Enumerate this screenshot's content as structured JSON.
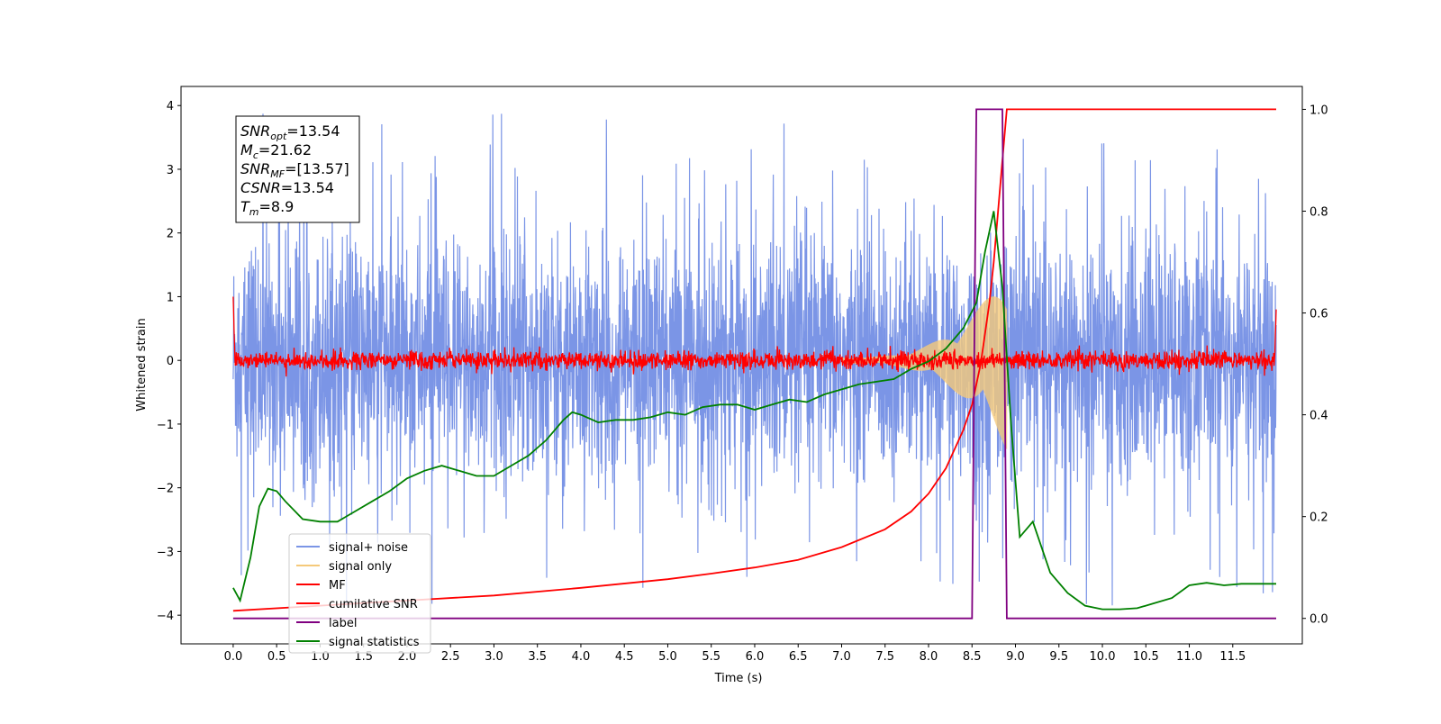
{
  "chart_data": {
    "type": "line",
    "title": "",
    "xlabel": "Time (s)",
    "ylabel": "Whitened strain",
    "ylabel_right": "",
    "xlim": [
      -0.6,
      12.3
    ],
    "ylim": [
      -4.45,
      4.3
    ],
    "ylim_right": [
      -0.05,
      1.045
    ],
    "x_ticks": [
      "0.0",
      "0.5",
      "1.0",
      "1.5",
      "2.0",
      "2.5",
      "3.0",
      "3.5",
      "4.0",
      "4.5",
      "5.0",
      "5.5",
      "6.0",
      "6.5",
      "7.0",
      "7.5",
      "8.0",
      "8.5",
      "9.0",
      "9.5",
      "10.0",
      "10.5",
      "11.0",
      "11.5"
    ],
    "y_ticks": [
      "4",
      "3",
      "2",
      "1",
      "0",
      "−1",
      "−2",
      "−3",
      "−4"
    ],
    "y_ticks_right": [
      "1.0",
      "0.8",
      "0.6",
      "0.4",
      "0.2",
      "0.0"
    ],
    "grid": false,
    "legend_position": "lower-left",
    "annotation": [
      {
        "base": "SNR",
        "sub": "opt",
        "value": "=13.54"
      },
      {
        "base": "M",
        "sub": "c",
        "value": "=21.62"
      },
      {
        "base": "SNR",
        "sub": "MF",
        "value": "=[13.57]"
      },
      {
        "base": "CSNR",
        "sub": "",
        "value": "=13.54"
      },
      {
        "base": "T",
        "sub": "m",
        "value": "=8.9"
      }
    ],
    "series": [
      {
        "name": "signal+ noise",
        "color": "#7b95e6",
        "axis": "left",
        "style": "noise",
        "x_range": [
          0.0,
          12.0
        ],
        "noise_std": 0.95,
        "spike_max": 3.95,
        "spike_min": -4.15
      },
      {
        "name": "signal only",
        "color": "#f5c97a",
        "axis": "left",
        "style": "chirp",
        "x_range": [
          7.0,
          8.9
        ],
        "amplitude_max": 1.35
      },
      {
        "name": "MF",
        "color": "#ff0000",
        "axis": "left",
        "style": "mf-noise",
        "x_range": [
          0.0,
          12.0
        ],
        "noise_std": 0.05,
        "edge_value": 1.0
      },
      {
        "name": "cumilative SNR",
        "color": "#ff0000",
        "axis": "right",
        "style": "line",
        "x": [
          0.0,
          1.0,
          2.0,
          3.0,
          4.0,
          5.0,
          5.5,
          6.0,
          6.5,
          7.0,
          7.5,
          7.8,
          8.0,
          8.2,
          8.4,
          8.5,
          8.6,
          8.7,
          8.75,
          8.8,
          8.85,
          8.9,
          12.0
        ],
        "y": [
          0.015,
          0.025,
          0.035,
          0.045,
          0.06,
          0.077,
          0.088,
          0.1,
          0.115,
          0.14,
          0.175,
          0.21,
          0.245,
          0.295,
          0.37,
          0.42,
          0.5,
          0.62,
          0.7,
          0.8,
          0.9,
          1.0,
          1.0
        ]
      },
      {
        "name": "label",
        "color": "#800080",
        "axis": "right",
        "style": "line",
        "x": [
          0.0,
          8.5,
          8.55,
          8.85,
          8.9,
          12.0
        ],
        "y": [
          0.0,
          0.0,
          1.0,
          1.0,
          0.0,
          0.0
        ]
      },
      {
        "name": "signal statistics",
        "color": "#008000",
        "axis": "right",
        "style": "line",
        "x": [
          0.0,
          0.08,
          0.2,
          0.3,
          0.4,
          0.5,
          0.6,
          0.8,
          1.0,
          1.2,
          1.4,
          1.6,
          1.8,
          2.0,
          2.2,
          2.4,
          2.6,
          2.8,
          3.0,
          3.2,
          3.4,
          3.6,
          3.8,
          3.9,
          4.0,
          4.2,
          4.4,
          4.6,
          4.8,
          5.0,
          5.2,
          5.4,
          5.6,
          5.8,
          6.0,
          6.2,
          6.4,
          6.6,
          6.8,
          7.0,
          7.2,
          7.4,
          7.6,
          7.8,
          8.0,
          8.2,
          8.4,
          8.55,
          8.65,
          8.75,
          8.85,
          8.95,
          9.05,
          9.2,
          9.4,
          9.6,
          9.8,
          10.0,
          10.2,
          10.4,
          10.6,
          10.8,
          11.0,
          11.2,
          11.4,
          11.6,
          11.8,
          12.0
        ],
        "y": [
          0.06,
          0.035,
          0.12,
          0.22,
          0.255,
          0.25,
          0.23,
          0.195,
          0.19,
          0.19,
          0.21,
          0.23,
          0.25,
          0.275,
          0.29,
          0.3,
          0.29,
          0.28,
          0.28,
          0.3,
          0.32,
          0.35,
          0.39,
          0.405,
          0.4,
          0.385,
          0.39,
          0.39,
          0.395,
          0.405,
          0.4,
          0.415,
          0.42,
          0.42,
          0.41,
          0.42,
          0.43,
          0.425,
          0.44,
          0.45,
          0.46,
          0.465,
          0.47,
          0.49,
          0.505,
          0.53,
          0.57,
          0.62,
          0.72,
          0.8,
          0.65,
          0.38,
          0.16,
          0.19,
          0.09,
          0.05,
          0.025,
          0.018,
          0.018,
          0.02,
          0.03,
          0.04,
          0.065,
          0.07,
          0.065,
          0.068,
          0.068,
          0.068
        ]
      }
    ]
  }
}
